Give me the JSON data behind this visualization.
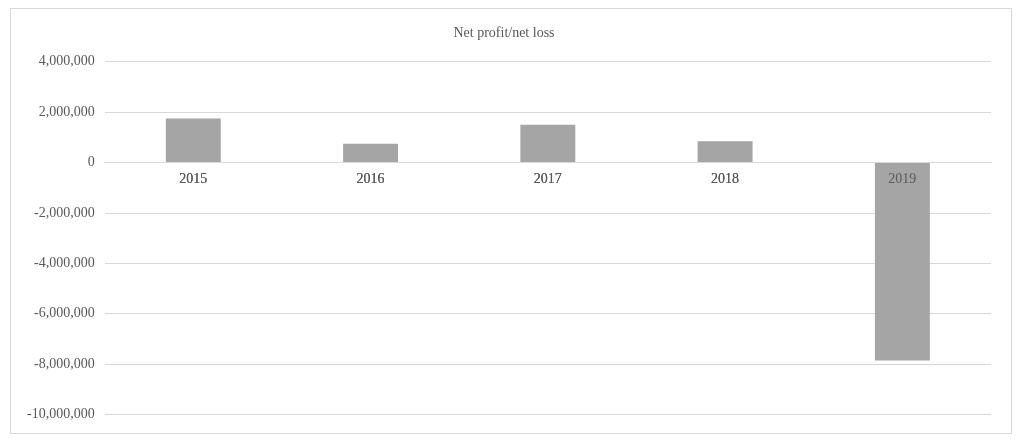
{
  "chart_data": {
    "type": "bar",
    "title": "Net profit/net loss",
    "categories": [
      "2015",
      "2016",
      "2017",
      "2018",
      "2019"
    ],
    "values": [
      1750000,
      750000,
      1500000,
      850000,
      -7850000
    ],
    "color": "#a5a5a5",
    "ylim": [
      -10000000,
      4000000
    ],
    "yticks": [
      {
        "value": -10000000,
        "label": "-10,000,000"
      },
      {
        "value": -8000000,
        "label": "-8,000,000"
      },
      {
        "value": -6000000,
        "label": "-6,000,000"
      },
      {
        "value": -4000000,
        "label": "-4,000,000"
      },
      {
        "value": -2000000,
        "label": "-2,000,000"
      },
      0,
      {
        "value": 2000000,
        "label": "2,000,000"
      },
      {
        "value": 4000000,
        "label": "4,000,000"
      }
    ],
    "grid": "y",
    "legend": false
  }
}
